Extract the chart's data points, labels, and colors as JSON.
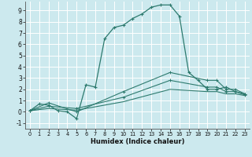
{
  "xlabel": "Humidex (Indice chaleur)",
  "xlim": [
    -0.5,
    23.5
  ],
  "ylim": [
    -1.5,
    9.8
  ],
  "yticks": [
    -1,
    0,
    1,
    2,
    3,
    4,
    5,
    6,
    7,
    8,
    9
  ],
  "xticks": [
    0,
    1,
    2,
    3,
    4,
    5,
    6,
    7,
    8,
    9,
    10,
    11,
    12,
    13,
    14,
    15,
    16,
    17,
    18,
    19,
    20,
    21,
    22,
    23
  ],
  "bg_color": "#cce9ee",
  "line_color": "#2d7a6e",
  "grid_color": "#ffffff",
  "line1_x": [
    0,
    1,
    2,
    3,
    4,
    5,
    6,
    7,
    8,
    9,
    10,
    11,
    12,
    13,
    14,
    15,
    16,
    17,
    18,
    19,
    20,
    21,
    22,
    23
  ],
  "line1_y": [
    0.1,
    0.7,
    0.6,
    0.1,
    0.0,
    -0.6,
    2.4,
    2.2,
    6.5,
    7.5,
    7.7,
    8.3,
    8.7,
    9.3,
    9.5,
    9.5,
    8.5,
    3.5,
    2.8,
    2.0,
    2.0,
    2.2,
    1.8,
    1.6
  ],
  "line2_x": [
    0,
    2,
    5,
    10,
    15,
    19,
    20,
    21,
    22,
    23
  ],
  "line2_y": [
    0.1,
    0.8,
    0.0,
    1.8,
    3.5,
    2.8,
    2.8,
    2.0,
    2.0,
    1.6
  ],
  "line3_x": [
    0,
    2,
    5,
    10,
    15,
    19,
    20,
    21,
    22,
    23
  ],
  "line3_y": [
    0.1,
    0.5,
    0.3,
    1.3,
    2.8,
    2.2,
    2.2,
    1.8,
    1.8,
    1.5
  ],
  "line4_x": [
    0,
    2,
    5,
    10,
    15,
    19,
    20,
    21,
    22,
    23
  ],
  "line4_y": [
    0.1,
    0.3,
    0.15,
    0.9,
    2.0,
    1.8,
    1.8,
    1.6,
    1.6,
    1.45
  ]
}
